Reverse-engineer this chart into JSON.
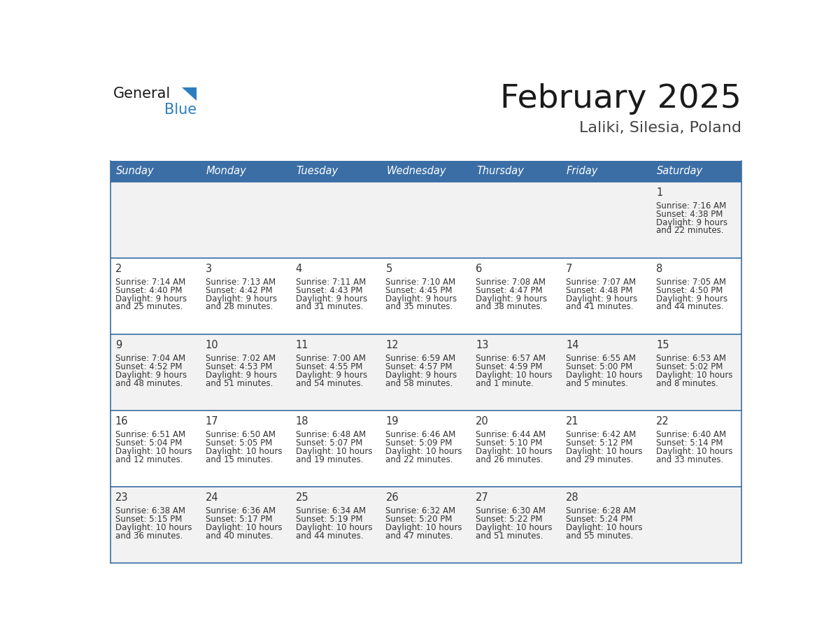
{
  "title": "February 2025",
  "subtitle": "Laliki, Silesia, Poland",
  "days_of_week": [
    "Sunday",
    "Monday",
    "Tuesday",
    "Wednesday",
    "Thursday",
    "Friday",
    "Saturday"
  ],
  "header_bg": "#3a6ea5",
  "header_text": "#ffffff",
  "cell_bg_odd": "#f2f2f2",
  "cell_bg_even": "#ffffff",
  "cell_text": "#333333",
  "grid_line": "#3a6ea5",
  "logo_general_color": "#1a1a1a",
  "logo_blue_color": "#2b7ec1",
  "calendar_data": [
    {
      "day": 1,
      "row": 0,
      "col": 6,
      "sunrise": "7:16 AM",
      "sunset": "4:38 PM",
      "daylight_h": "9 hours",
      "daylight_m": "22 minutes."
    },
    {
      "day": 2,
      "row": 1,
      "col": 0,
      "sunrise": "7:14 AM",
      "sunset": "4:40 PM",
      "daylight_h": "9 hours",
      "daylight_m": "25 minutes."
    },
    {
      "day": 3,
      "row": 1,
      "col": 1,
      "sunrise": "7:13 AM",
      "sunset": "4:42 PM",
      "daylight_h": "9 hours",
      "daylight_m": "28 minutes."
    },
    {
      "day": 4,
      "row": 1,
      "col": 2,
      "sunrise": "7:11 AM",
      "sunset": "4:43 PM",
      "daylight_h": "9 hours",
      "daylight_m": "31 minutes."
    },
    {
      "day": 5,
      "row": 1,
      "col": 3,
      "sunrise": "7:10 AM",
      "sunset": "4:45 PM",
      "daylight_h": "9 hours",
      "daylight_m": "35 minutes."
    },
    {
      "day": 6,
      "row": 1,
      "col": 4,
      "sunrise": "7:08 AM",
      "sunset": "4:47 PM",
      "daylight_h": "9 hours",
      "daylight_m": "38 minutes."
    },
    {
      "day": 7,
      "row": 1,
      "col": 5,
      "sunrise": "7:07 AM",
      "sunset": "4:48 PM",
      "daylight_h": "9 hours",
      "daylight_m": "41 minutes."
    },
    {
      "day": 8,
      "row": 1,
      "col": 6,
      "sunrise": "7:05 AM",
      "sunset": "4:50 PM",
      "daylight_h": "9 hours",
      "daylight_m": "44 minutes."
    },
    {
      "day": 9,
      "row": 2,
      "col": 0,
      "sunrise": "7:04 AM",
      "sunset": "4:52 PM",
      "daylight_h": "9 hours",
      "daylight_m": "48 minutes."
    },
    {
      "day": 10,
      "row": 2,
      "col": 1,
      "sunrise": "7:02 AM",
      "sunset": "4:53 PM",
      "daylight_h": "9 hours",
      "daylight_m": "51 minutes."
    },
    {
      "day": 11,
      "row": 2,
      "col": 2,
      "sunrise": "7:00 AM",
      "sunset": "4:55 PM",
      "daylight_h": "9 hours",
      "daylight_m": "54 minutes."
    },
    {
      "day": 12,
      "row": 2,
      "col": 3,
      "sunrise": "6:59 AM",
      "sunset": "4:57 PM",
      "daylight_h": "9 hours",
      "daylight_m": "58 minutes."
    },
    {
      "day": 13,
      "row": 2,
      "col": 4,
      "sunrise": "6:57 AM",
      "sunset": "4:59 PM",
      "daylight_h": "10 hours",
      "daylight_m": "1 minute."
    },
    {
      "day": 14,
      "row": 2,
      "col": 5,
      "sunrise": "6:55 AM",
      "sunset": "5:00 PM",
      "daylight_h": "10 hours",
      "daylight_m": "5 minutes."
    },
    {
      "day": 15,
      "row": 2,
      "col": 6,
      "sunrise": "6:53 AM",
      "sunset": "5:02 PM",
      "daylight_h": "10 hours",
      "daylight_m": "8 minutes."
    },
    {
      "day": 16,
      "row": 3,
      "col": 0,
      "sunrise": "6:51 AM",
      "sunset": "5:04 PM",
      "daylight_h": "10 hours",
      "daylight_m": "12 minutes."
    },
    {
      "day": 17,
      "row": 3,
      "col": 1,
      "sunrise": "6:50 AM",
      "sunset": "5:05 PM",
      "daylight_h": "10 hours",
      "daylight_m": "15 minutes."
    },
    {
      "day": 18,
      "row": 3,
      "col": 2,
      "sunrise": "6:48 AM",
      "sunset": "5:07 PM",
      "daylight_h": "10 hours",
      "daylight_m": "19 minutes."
    },
    {
      "day": 19,
      "row": 3,
      "col": 3,
      "sunrise": "6:46 AM",
      "sunset": "5:09 PM",
      "daylight_h": "10 hours",
      "daylight_m": "22 minutes."
    },
    {
      "day": 20,
      "row": 3,
      "col": 4,
      "sunrise": "6:44 AM",
      "sunset": "5:10 PM",
      "daylight_h": "10 hours",
      "daylight_m": "26 minutes."
    },
    {
      "day": 21,
      "row": 3,
      "col": 5,
      "sunrise": "6:42 AM",
      "sunset": "5:12 PM",
      "daylight_h": "10 hours",
      "daylight_m": "29 minutes."
    },
    {
      "day": 22,
      "row": 3,
      "col": 6,
      "sunrise": "6:40 AM",
      "sunset": "5:14 PM",
      "daylight_h": "10 hours",
      "daylight_m": "33 minutes."
    },
    {
      "day": 23,
      "row": 4,
      "col": 0,
      "sunrise": "6:38 AM",
      "sunset": "5:15 PM",
      "daylight_h": "10 hours",
      "daylight_m": "36 minutes."
    },
    {
      "day": 24,
      "row": 4,
      "col": 1,
      "sunrise": "6:36 AM",
      "sunset": "5:17 PM",
      "daylight_h": "10 hours",
      "daylight_m": "40 minutes."
    },
    {
      "day": 25,
      "row": 4,
      "col": 2,
      "sunrise": "6:34 AM",
      "sunset": "5:19 PM",
      "daylight_h": "10 hours",
      "daylight_m": "44 minutes."
    },
    {
      "day": 26,
      "row": 4,
      "col": 3,
      "sunrise": "6:32 AM",
      "sunset": "5:20 PM",
      "daylight_h": "10 hours",
      "daylight_m": "47 minutes."
    },
    {
      "day": 27,
      "row": 4,
      "col": 4,
      "sunrise": "6:30 AM",
      "sunset": "5:22 PM",
      "daylight_h": "10 hours",
      "daylight_m": "51 minutes."
    },
    {
      "day": 28,
      "row": 4,
      "col": 5,
      "sunrise": "6:28 AM",
      "sunset": "5:24 PM",
      "daylight_h": "10 hours",
      "daylight_m": "55 minutes."
    }
  ],
  "num_rows": 5,
  "num_cols": 7
}
